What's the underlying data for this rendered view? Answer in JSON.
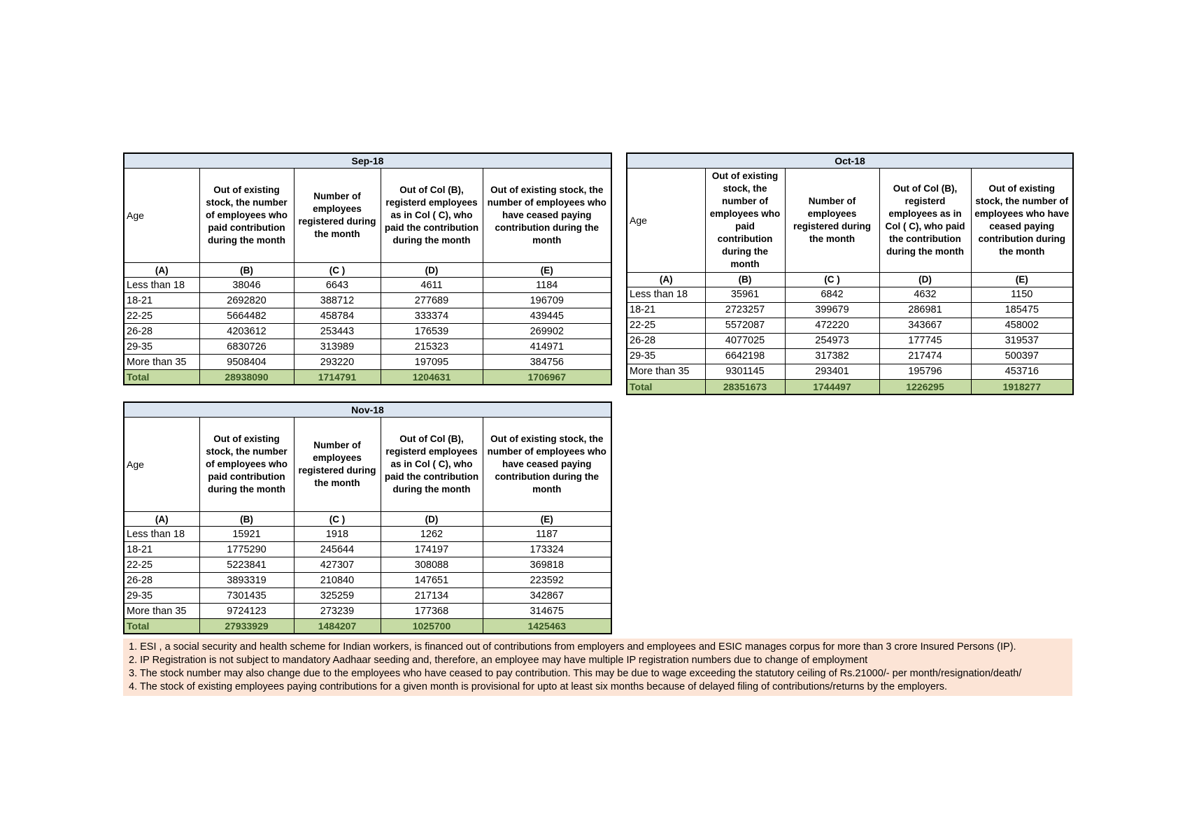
{
  "report": {
    "colors": {
      "month_header_bg": "#dbe5f1",
      "total_row_bg": "#c6dba4",
      "total_text": "#375623",
      "notes_bg": "#fce4d6",
      "border": "#000000"
    },
    "tables": [
      {
        "title": "Sep-18",
        "age_header": "Age",
        "col_headers": [
          "Out of existing stock, the number of employees who paid contribution during the month",
          "Number of employees registered during the month",
          "Out of Col (B), registerd employees as in Col ( C), who paid the contribution during the month",
          "Out of existing stock, the number of employees who have ceased paying contribution during the month"
        ],
        "letter_row": [
          "(A)",
          "(B)",
          "(C )",
          "(D)",
          "(E)"
        ],
        "rows": [
          {
            "age": "Less than 18",
            "values": [
              "38046",
              "6643",
              "4611",
              "1184"
            ]
          },
          {
            "age": "18-21",
            "values": [
              "2692820",
              "388712",
              "277689",
              "196709"
            ]
          },
          {
            "age": "22-25",
            "values": [
              "5664482",
              "458784",
              "333374",
              "439445"
            ]
          },
          {
            "age": "26-28",
            "values": [
              "4203612",
              "253443",
              "176539",
              "269902"
            ]
          },
          {
            "age": "29-35",
            "values": [
              "6830726",
              "313989",
              "215323",
              "414971"
            ]
          },
          {
            "age": "More than 35",
            "values": [
              "9508404",
              "293220",
              "197095",
              "384756"
            ]
          }
        ],
        "total_label": "Total",
        "total_values": [
          "28938090",
          "1714791",
          "1204631",
          "1706967"
        ]
      },
      {
        "title": "Oct-18",
        "age_header": "Age",
        "col_headers": [
          "Out of existing stock, the number of employees who paid contribution during the month",
          "Number of employees registered during the month",
          "Out of Col (B), registerd employees as in Col ( C), who paid the contribution during the month",
          "Out of existing stock, the number of employees who have ceased paying contribution during the month"
        ],
        "letter_row": [
          "(A)",
          "(B)",
          "(C )",
          "(D)",
          "(E)"
        ],
        "rows": [
          {
            "age": "Less than 18",
            "values": [
              "35961",
              "6842",
              "4632",
              "1150"
            ]
          },
          {
            "age": "18-21",
            "values": [
              "2723257",
              "399679",
              "286981",
              "185475"
            ]
          },
          {
            "age": "22-25",
            "values": [
              "5572087",
              "472220",
              "343667",
              "458002"
            ]
          },
          {
            "age": "26-28",
            "values": [
              "4077025",
              "254973",
              "177745",
              "319537"
            ]
          },
          {
            "age": "29-35",
            "values": [
              "6642198",
              "317382",
              "217474",
              "500397"
            ]
          },
          {
            "age": "More than 35",
            "values": [
              "9301145",
              "293401",
              "195796",
              "453716"
            ]
          }
        ],
        "total_label": "Total",
        "total_values": [
          "28351673",
          "1744497",
          "1226295",
          "1918277"
        ]
      },
      {
        "title": "Nov-18",
        "age_header": "Age",
        "col_headers": [
          "Out of existing stock, the number of employees who paid contribution during the month",
          "Number of employees registered during the month",
          "Out of Col (B), registerd employees as in Col ( C), who paid the contribution during the month",
          "Out of existing stock, the number of employees who have ceased paying contribution during the month"
        ],
        "letter_row": [
          "(A)",
          "(B)",
          "(C )",
          "(D)",
          "(E)"
        ],
        "rows": [
          {
            "age": "Less than 18",
            "values": [
              "15921",
              "1918",
              "1262",
              "1187"
            ]
          },
          {
            "age": "18-21",
            "values": [
              "1775290",
              "245644",
              "174197",
              "173324"
            ]
          },
          {
            "age": "22-25",
            "values": [
              "5223841",
              "427307",
              "308088",
              "369818"
            ]
          },
          {
            "age": "26-28",
            "values": [
              "3893319",
              "210840",
              "147651",
              "223592"
            ]
          },
          {
            "age": "29-35",
            "values": [
              "7301435",
              "325259",
              "217134",
              "342867"
            ]
          },
          {
            "age": "More than 35",
            "values": [
              "9724123",
              "273239",
              "177368",
              "314675"
            ]
          }
        ],
        "total_label": "Total",
        "total_values": [
          "27933929",
          "1484207",
          "1025700",
          "1425463"
        ]
      }
    ],
    "notes": [
      "1. ESI , a social security and health scheme for Indian workers, is financed out of contributions from employers and employees and ESIC manages corpus for more than 3 crore Insured Persons (IP).",
      "2. IP Registration is not subject to mandatory Aadhaar seeding and, therefore, an employee may have multiple IP registration numbers due to change of employment",
      "3. The stock number may also change due to the employees who have ceased to pay contribution. This may  be due to wage exceeding the statutory ceiling of  Rs.21000/- per month/resignation/death/",
      "4. The stock of existing employees paying contributions for a given month is provisional for upto at least six months because of delayed filing of contributions/returns by the employers."
    ]
  }
}
